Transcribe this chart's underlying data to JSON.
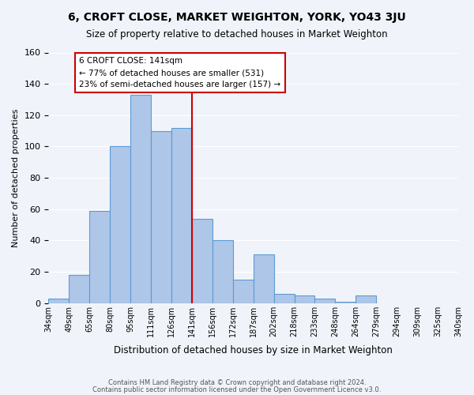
{
  "title": "6, CROFT CLOSE, MARKET WEIGHTON, YORK, YO43 3JU",
  "subtitle": "Size of property relative to detached houses in Market Weighton",
  "xlabel": "Distribution of detached houses by size in Market Weighton",
  "ylabel": "Number of detached properties",
  "bar_values": [
    3,
    18,
    59,
    100,
    133,
    110,
    112,
    54,
    40,
    15,
    31,
    6,
    5,
    3,
    1,
    5
  ],
  "bin_labels": [
    "34sqm",
    "49sqm",
    "65sqm",
    "80sqm",
    "95sqm",
    "111sqm",
    "126sqm",
    "141sqm",
    "156sqm",
    "172sqm",
    "187sqm",
    "202sqm",
    "218sqm",
    "233sqm",
    "248sqm",
    "264sqm",
    "279sqm",
    "294sqm",
    "309sqm",
    "325sqm",
    "340sqm"
  ],
  "bar_color": "#aec6e8",
  "bar_edge_color": "#5b9bd5",
  "vline_x": 7,
  "vline_color": "#cc0000",
  "annotation_title": "6 CROFT CLOSE: 141sqm",
  "annotation_line1": "← 77% of detached houses are smaller (531)",
  "annotation_line2": "23% of semi-detached houses are larger (157) →",
  "annotation_box_color": "#cc0000",
  "ylim": [
    0,
    160
  ],
  "yticks": [
    0,
    20,
    40,
    60,
    80,
    100,
    120,
    140,
    160
  ],
  "footer1": "Contains HM Land Registry data © Crown copyright and database right 2024.",
  "footer2": "Contains public sector information licensed under the Open Government Licence v3.0.",
  "bg_color": "#f0f4fa",
  "grid_color": "#ffffff",
  "num_bins": 16
}
